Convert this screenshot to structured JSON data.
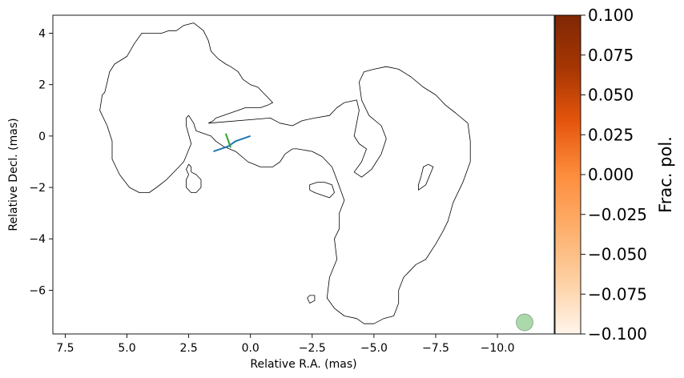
{
  "chart_data": {
    "type": "contour",
    "xlabel": "Relative R.A. (mas)",
    "ylabel": "Relative Decl. (mas)",
    "xlim": [
      8.0,
      -12.3
    ],
    "ylim": [
      -7.7,
      4.7
    ],
    "xticks": [
      {
        "value": 7.5,
        "label": "7.5"
      },
      {
        "value": 5.0,
        "label": "5.0"
      },
      {
        "value": 2.5,
        "label": "2.5"
      },
      {
        "value": 0.0,
        "label": "0.0"
      },
      {
        "value": -2.5,
        "label": "−2.5"
      },
      {
        "value": -5.0,
        "label": "−5.0"
      },
      {
        "value": -7.5,
        "label": "−7.5"
      },
      {
        "value": -10.0,
        "label": "−10.0"
      }
    ],
    "yticks": [
      {
        "value": 4,
        "label": "4"
      },
      {
        "value": 2,
        "label": "2"
      },
      {
        "value": 0,
        "label": "0"
      },
      {
        "value": -2,
        "label": "−2"
      },
      {
        "value": -4,
        "label": "−4"
      },
      {
        "value": -6,
        "label": "−6"
      }
    ],
    "contours": [
      {
        "name": "main",
        "points": [
          [
            5.9,
            1.7
          ],
          [
            5.7,
            2.5
          ],
          [
            5.5,
            2.8
          ],
          [
            5.0,
            3.1
          ],
          [
            4.7,
            3.6
          ],
          [
            4.4,
            4.0
          ],
          [
            4.0,
            4.0
          ],
          [
            3.6,
            4.0
          ],
          [
            3.3,
            4.1
          ],
          [
            3.0,
            4.1
          ],
          [
            2.7,
            4.3
          ],
          [
            2.3,
            4.4
          ],
          [
            1.9,
            4.1
          ],
          [
            1.7,
            3.7
          ],
          [
            1.6,
            3.3
          ],
          [
            1.3,
            3.0
          ],
          [
            1.0,
            2.8
          ],
          [
            0.8,
            2.7
          ],
          [
            0.5,
            2.5
          ],
          [
            0.3,
            2.2
          ],
          [
            0.0,
            2.0
          ],
          [
            -0.3,
            1.9
          ],
          [
            -0.6,
            1.6
          ],
          [
            -0.8,
            1.4
          ],
          [
            -0.9,
            1.3
          ],
          [
            -0.7,
            1.2
          ],
          [
            -0.4,
            1.1
          ],
          [
            -0.1,
            1.1
          ],
          [
            0.2,
            1.1
          ],
          [
            0.5,
            1.0
          ],
          [
            0.8,
            0.9
          ],
          [
            1.1,
            0.8
          ],
          [
            1.4,
            0.7
          ],
          [
            1.5,
            0.6
          ],
          [
            1.7,
            0.5
          ],
          [
            -0.8,
            0.7
          ],
          [
            -1.2,
            0.5
          ],
          [
            -1.7,
            0.4
          ],
          [
            -2.1,
            0.6
          ],
          [
            -2.6,
            0.7
          ],
          [
            -3.2,
            0.8
          ],
          [
            -3.5,
            1.1
          ],
          [
            -3.8,
            1.3
          ],
          [
            -4.3,
            1.4
          ],
          [
            -4.4,
            1.0
          ],
          [
            -4.3,
            0.5
          ],
          [
            -4.2,
            0.0
          ],
          [
            -4.4,
            -0.3
          ],
          [
            -4.7,
            -0.5
          ],
          [
            -4.5,
            -1.0
          ],
          [
            -4.2,
            -1.4
          ],
          [
            -4.5,
            -1.6
          ],
          [
            -4.9,
            -1.3
          ],
          [
            -5.3,
            -0.7
          ],
          [
            -5.5,
            -0.1
          ],
          [
            -5.3,
            0.4
          ],
          [
            -4.8,
            0.8
          ],
          [
            -4.5,
            1.4
          ],
          [
            -4.4,
            2.1
          ],
          [
            -4.6,
            2.5
          ],
          [
            -5.0,
            2.6
          ],
          [
            -5.5,
            2.7
          ],
          [
            -6.0,
            2.6
          ],
          [
            -6.5,
            2.3
          ],
          [
            -7.0,
            1.9
          ],
          [
            -7.5,
            1.6
          ],
          [
            -7.9,
            1.2
          ],
          [
            -8.3,
            0.9
          ],
          [
            -8.8,
            0.5
          ],
          [
            -8.9,
            -0.2
          ],
          [
            -8.9,
            -1.0
          ],
          [
            -8.6,
            -1.8
          ],
          [
            -8.2,
            -2.6
          ],
          [
            -8.0,
            -3.3
          ],
          [
            -7.8,
            -3.7
          ],
          [
            -7.5,
            -4.2
          ],
          [
            -7.1,
            -4.8
          ],
          [
            -6.7,
            -5.0
          ],
          [
            -6.2,
            -5.5
          ],
          [
            -6.0,
            -6.0
          ],
          [
            -6.0,
            -6.5
          ],
          [
            -5.8,
            -7.0
          ],
          [
            -5.4,
            -7.1
          ],
          [
            -5.0,
            -7.3
          ],
          [
            -4.6,
            -7.3
          ],
          [
            -4.3,
            -7.1
          ],
          [
            -3.8,
            -7.0
          ],
          [
            -3.4,
            -6.7
          ],
          [
            -3.1,
            -6.3
          ],
          [
            -3.2,
            -5.5
          ],
          [
            -3.5,
            -4.8
          ],
          [
            -3.4,
            -4.0
          ],
          [
            -3.6,
            -3.6
          ],
          [
            -3.6,
            -3.0
          ],
          [
            -3.8,
            -2.5
          ],
          [
            -3.5,
            -1.7
          ],
          [
            -3.3,
            -1.2
          ],
          [
            -2.9,
            -0.8
          ],
          [
            -2.5,
            -0.6
          ],
          [
            -1.9,
            -0.5
          ],
          [
            -1.7,
            -0.5
          ],
          [
            -1.4,
            -0.7
          ],
          [
            -1.2,
            -1.0
          ],
          [
            -0.9,
            -1.2
          ],
          [
            -0.4,
            -1.2
          ],
          [
            0.1,
            -1.0
          ],
          [
            0.6,
            -0.6
          ],
          [
            1.1,
            -0.4
          ],
          [
            1.4,
            -0.2
          ],
          [
            1.6,
            0.0
          ],
          [
            1.9,
            0.1
          ],
          [
            2.2,
            0.2
          ],
          [
            2.3,
            0.5
          ],
          [
            2.5,
            0.8
          ],
          [
            2.6,
            0.7
          ],
          [
            2.6,
            0.4
          ],
          [
            2.4,
            -0.3
          ],
          [
            2.7,
            -1.0
          ],
          [
            3.0,
            -1.3
          ],
          [
            3.4,
            -1.7
          ],
          [
            3.8,
            -2.0
          ],
          [
            4.1,
            -2.2
          ],
          [
            4.5,
            -2.2
          ],
          [
            4.9,
            -2.0
          ],
          [
            5.3,
            -1.5
          ],
          [
            5.6,
            -0.9
          ],
          [
            5.6,
            -0.2
          ],
          [
            5.8,
            0.4
          ],
          [
            6.1,
            1.0
          ],
          [
            6.0,
            1.6
          ]
        ]
      },
      {
        "name": "island-left",
        "points": [
          [
            2.5,
            -1.1
          ],
          [
            2.6,
            -1.3
          ],
          [
            2.5,
            -1.5
          ],
          [
            2.6,
            -1.7
          ],
          [
            2.6,
            -2.0
          ],
          [
            2.4,
            -2.2
          ],
          [
            2.2,
            -2.2
          ],
          [
            2.0,
            -2.0
          ],
          [
            2.0,
            -1.7
          ],
          [
            2.2,
            -1.5
          ],
          [
            2.4,
            -1.4
          ],
          [
            2.4,
            -1.2
          ]
        ]
      },
      {
        "name": "island-center",
        "points": [
          [
            -2.4,
            -1.9
          ],
          [
            -2.7,
            -1.8
          ],
          [
            -3.0,
            -1.8
          ],
          [
            -3.3,
            -1.9
          ],
          [
            -3.4,
            -2.2
          ],
          [
            -3.2,
            -2.4
          ],
          [
            -2.9,
            -2.3
          ],
          [
            -2.6,
            -2.2
          ],
          [
            -2.4,
            -2.1
          ]
        ]
      },
      {
        "name": "island-right",
        "points": [
          [
            -6.8,
            -2.1
          ],
          [
            -7.1,
            -1.9
          ],
          [
            -7.4,
            -1.2
          ],
          [
            -7.2,
            -1.1
          ],
          [
            -7.0,
            -1.2
          ],
          [
            -6.9,
            -1.6
          ],
          [
            -6.8,
            -1.9
          ]
        ]
      },
      {
        "name": "island-small",
        "points": [
          [
            -2.4,
            -6.2
          ],
          [
            -2.6,
            -6.2
          ],
          [
            -2.6,
            -6.4
          ],
          [
            -2.4,
            -6.5
          ],
          [
            -2.3,
            -6.3
          ]
        ]
      }
    ],
    "jet_ridge": {
      "color": "#1f77b4",
      "points": [
        [
          0.0,
          0.0
        ],
        [
          0.3,
          -0.1
        ],
        [
          0.6,
          -0.2
        ],
        [
          0.9,
          -0.4
        ],
        [
          1.2,
          -0.5
        ],
        [
          1.5,
          -0.6
        ]
      ]
    },
    "evpa_tick": {
      "color": "#2ca02c",
      "points": [
        [
          0.8,
          -0.45
        ],
        [
          1.0,
          0.1
        ]
      ]
    },
    "beam": {
      "x": -11.1,
      "y": -7.25,
      "color": "#2ca02c"
    },
    "colorbar": {
      "label": "Frac. pol.",
      "min": -0.1,
      "max": 0.1,
      "cmap": [
        "#fff5eb",
        "#fdd0a2",
        "#fdae6b",
        "#fd8d3c",
        "#e6550d",
        "#a63603",
        "#7f2704"
      ],
      "ticks": [
        {
          "value": 0.1,
          "label": "0.100"
        },
        {
          "value": 0.075,
          "label": "0.075"
        },
        {
          "value": 0.05,
          "label": "0.050"
        },
        {
          "value": 0.025,
          "label": "0.025"
        },
        {
          "value": 0.0,
          "label": "0.000"
        },
        {
          "value": -0.025,
          "label": "−0.025"
        },
        {
          "value": -0.05,
          "label": "−0.050"
        },
        {
          "value": -0.075,
          "label": "−0.075"
        },
        {
          "value": -0.1,
          "label": "−0.100"
        }
      ]
    }
  }
}
